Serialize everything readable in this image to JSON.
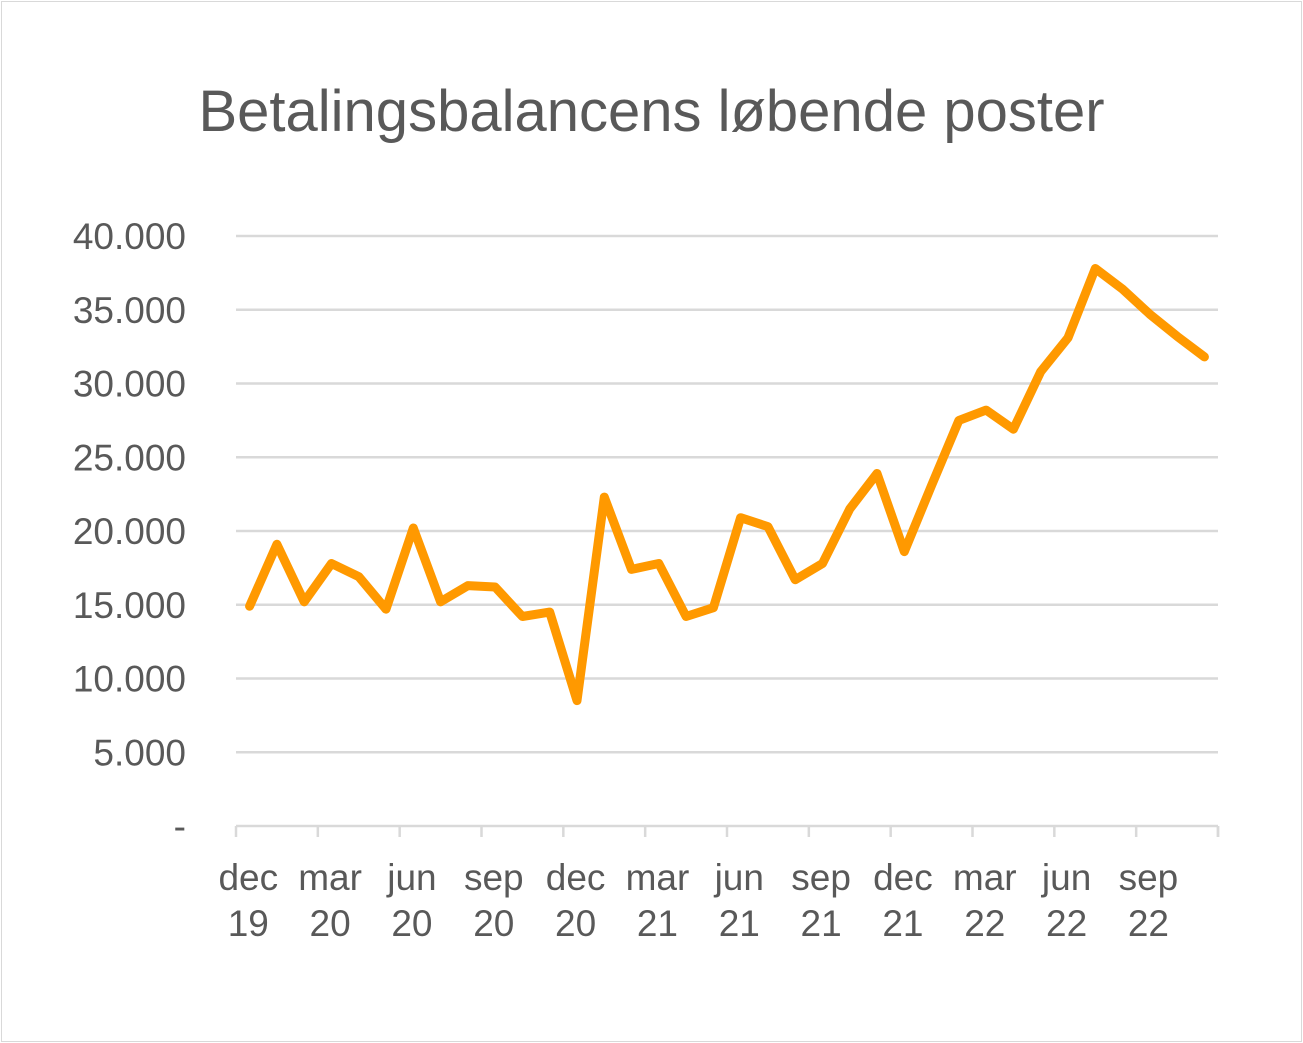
{
  "chart_data": {
    "type": "line",
    "title": "Betalingsbalancens løbende poster",
    "xlabel": "",
    "ylabel": "",
    "ylim": [
      0,
      40000
    ],
    "y_ticks": [
      "-",
      "5.000",
      "10.000",
      "15.000",
      "20.000",
      "25.000",
      "30.000",
      "35.000",
      "40.000"
    ],
    "y_tick_values": [
      0,
      5000,
      10000,
      15000,
      20000,
      25000,
      30000,
      35000,
      40000
    ],
    "x_tick_labels": [
      [
        "dec",
        "19"
      ],
      [
        "mar",
        "20"
      ],
      [
        "jun",
        "20"
      ],
      [
        "sep",
        "20"
      ],
      [
        "dec",
        "20"
      ],
      [
        "mar",
        "21"
      ],
      [
        "jun",
        "21"
      ],
      [
        "sep",
        "21"
      ],
      [
        "dec",
        "21"
      ],
      [
        "mar",
        "22"
      ],
      [
        "jun",
        "22"
      ],
      [
        "sep",
        "22"
      ]
    ],
    "x": [
      "2019-12",
      "2020-01",
      "2020-02",
      "2020-03",
      "2020-04",
      "2020-05",
      "2020-06",
      "2020-07",
      "2020-08",
      "2020-09",
      "2020-10",
      "2020-11",
      "2020-12",
      "2021-01",
      "2021-02",
      "2021-03",
      "2021-04",
      "2021-05",
      "2021-06",
      "2021-07",
      "2021-08",
      "2021-09",
      "2021-10",
      "2021-11",
      "2021-12",
      "2022-01",
      "2022-02",
      "2022-03",
      "2022-04",
      "2022-05",
      "2022-06",
      "2022-07",
      "2022-08",
      "2022-09",
      "2022-10",
      "2022-11"
    ],
    "series": [
      {
        "values": [
          14900,
          19100,
          15200,
          17800,
          16900,
          14700,
          20200,
          15200,
          16300,
          16200,
          14200,
          14500,
          8500,
          22300,
          17400,
          17800,
          14200,
          14800,
          20900,
          20300,
          16700,
          17800,
          21500,
          23900,
          18600,
          23100,
          27500,
          28200,
          26900,
          30800,
          33100,
          37800,
          36400,
          34700,
          33200,
          31800
        ]
      }
    ],
    "grid": true,
    "legend": "none",
    "colors": {
      "line": "#ff9900",
      "grid": "#d9d9d9",
      "text": "#595959"
    }
  }
}
